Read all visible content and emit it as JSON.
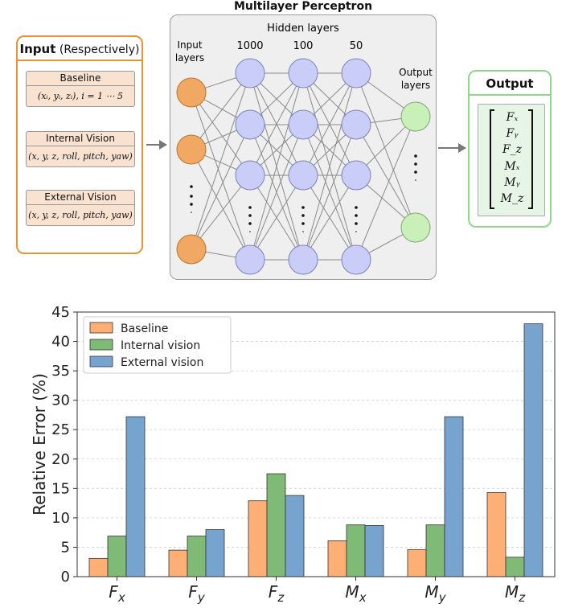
{
  "diagram": {
    "input_panel": {
      "title_bold": "Input",
      "title_rest": "(Respectively)",
      "groups": [
        {
          "header": "Baseline",
          "body": "(xᵢ, yᵢ, zᵢ), i = 1 ⋯ 5"
        },
        {
          "header": "Internal  Vision",
          "body": "(x, y, z, roll, pitch, yaw)"
        },
        {
          "header": "External Vision",
          "body": "(x, y, z, roll, pitch, yaw)"
        }
      ]
    },
    "mlp_panel": {
      "title": "Multilayer Perceptron",
      "hidden_label": "Hidden layers",
      "input_label_1": "Input",
      "input_label_2": "layers",
      "layer_sizes": [
        "1000",
        "100",
        "50"
      ],
      "output_label_1": "Output",
      "output_label_2": "layers"
    },
    "output_panel": {
      "title": "Output",
      "items": [
        "Fₓ",
        "Fᵧ",
        "F_z",
        "Mₓ",
        "Mᵧ",
        "M_z"
      ]
    },
    "colors": {
      "input_node": "#f0a862",
      "hidden_node": "#c9cdf7",
      "output_node": "#c9f0b8",
      "input_border": "#e8923a",
      "output_border": "#8fd88a"
    }
  },
  "chart_data": {
    "type": "bar",
    "categories": [
      "F_x",
      "F_y",
      "F_z",
      "M_x",
      "M_y",
      "M_z"
    ],
    "series": [
      {
        "name": "Baseline",
        "values": [
          3.1,
          4.5,
          12.9,
          6.1,
          4.6,
          14.3
        ],
        "color": "#fdaf76"
      },
      {
        "name": "Internal vision",
        "values": [
          6.9,
          6.9,
          17.5,
          8.8,
          8.8,
          3.3
        ],
        "color": "#7fbb76"
      },
      {
        "name": "External vision",
        "values": [
          27.2,
          8.0,
          13.8,
          8.7,
          27.2,
          43.0
        ],
        "color": "#77a4cf"
      }
    ],
    "ylabel": "Relative Error (%)",
    "ylim": [
      0,
      45
    ],
    "yticks": [
      "0",
      "5",
      "10",
      "15",
      "20",
      "25",
      "30",
      "35",
      "40",
      "45"
    ],
    "legend_position": "top-left",
    "grid": true
  }
}
